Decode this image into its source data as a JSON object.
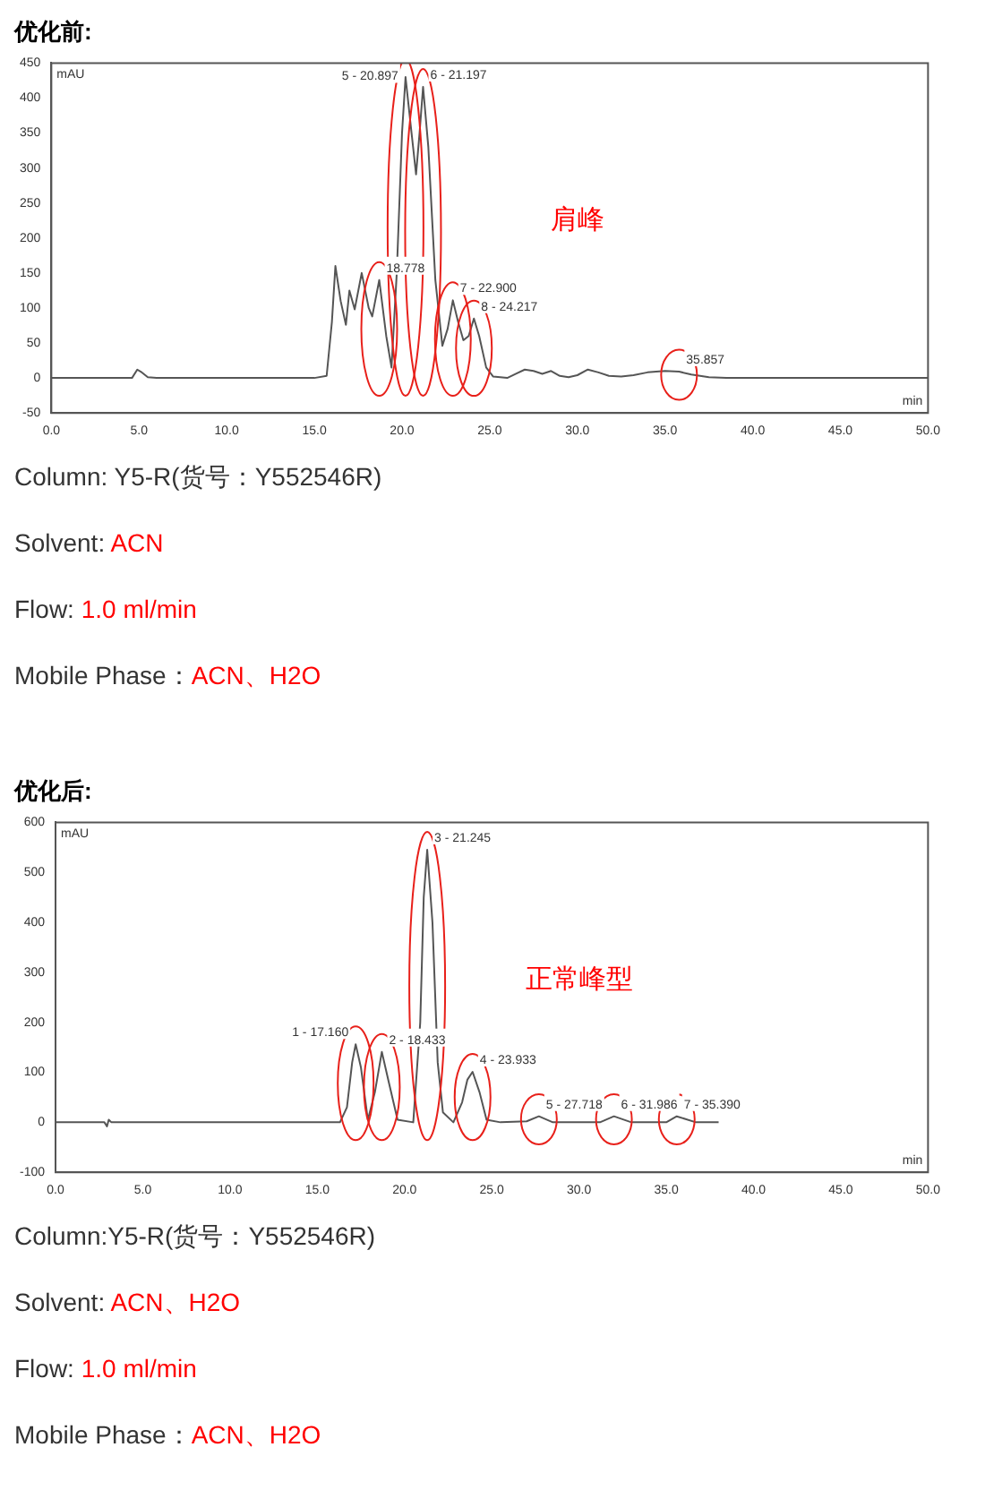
{
  "chart_data": [
    {
      "type": "line",
      "title": "优化前:",
      "xlabel": "min",
      "ylabel": "mAU",
      "xlim": [
        0,
        50
      ],
      "ylim": [
        -50,
        450
      ],
      "xticks": [
        {
          "value": 0,
          "label": "0.0"
        },
        {
          "value": 5,
          "label": "5.0"
        },
        {
          "value": 10,
          "label": "10.0"
        },
        {
          "value": 15,
          "label": "15.0"
        },
        {
          "value": 20,
          "label": "20.0"
        },
        {
          "value": 25,
          "label": "25.0"
        },
        {
          "value": 30,
          "label": "30.0"
        },
        {
          "value": 35,
          "label": "35.0"
        },
        {
          "value": 40,
          "label": "40.0"
        },
        {
          "value": 45,
          "label": "45.0"
        },
        {
          "value": 50,
          "label": "50.0"
        }
      ],
      "yticks": [
        -50,
        0,
        50,
        100,
        150,
        200,
        250,
        300,
        350,
        400,
        450
      ],
      "grid": false,
      "legend": false,
      "marker": "none",
      "line_style": "solid",
      "series": [
        {
          "color": "#555555",
          "x": [
            0,
            4.6,
            4.9,
            5.1,
            5.5,
            6,
            15,
            15.7,
            16.0,
            16.2,
            16.5,
            16.8,
            17.0,
            17.3,
            17.7,
            18.1,
            18.3,
            18.7,
            19.1,
            19.4,
            19.7,
            20.0,
            20.2,
            20.5,
            20.8,
            21.0,
            21.2,
            21.5,
            21.9,
            22.3,
            22.6,
            22.9,
            23.2,
            23.5,
            23.8,
            24.1,
            24.4,
            24.8,
            25.2,
            26,
            26.5,
            27,
            27.5,
            28,
            28.5,
            29,
            29.5,
            30,
            30.6,
            31.2,
            31.8,
            32.5,
            33.2,
            34,
            35,
            35.8,
            36.5,
            37.5,
            38.5,
            50
          ],
          "values": [
            0,
            0,
            12,
            9,
            1,
            0,
            0,
            3,
            80,
            160,
            110,
            76,
            125,
            98,
            150,
            100,
            88,
            140,
            60,
            15,
            150,
            350,
            430,
            360,
            291,
            350,
            416,
            330,
            140,
            46,
            70,
            111,
            80,
            54,
            60,
            85,
            60,
            15,
            2,
            0,
            6,
            12,
            10,
            6,
            10,
            3,
            1,
            4,
            12,
            8,
            3,
            2,
            4,
            8,
            10,
            9,
            5,
            1,
            0,
            0
          ]
        }
      ],
      "annotations": [
        {
          "text": "18.778",
          "x": 18.7,
          "y": 140
        },
        {
          "text": "5 - 20.897",
          "x": 20.2,
          "y": 430
        },
        {
          "text": "6 - 21.197",
          "x": 21.2,
          "y": 416
        },
        {
          "text": "7 - 22.900",
          "x": 22.9,
          "y": 111
        },
        {
          "text": "8 - 24.217",
          "x": 24.1,
          "y": 85
        },
        {
          "text": "35.857",
          "x": 35.8,
          "y": 9
        },
        "肩峰",
        "Column: Y5-R(货号：Y552546R)",
        "Solvent: ACN",
        "Flow: 1.0 ml/min",
        "Mobile Phase：ACN、H2O"
      ]
    },
    {
      "type": "line",
      "title": "优化后:",
      "xlabel": "min",
      "ylabel": "mAU",
      "xlim": [
        0,
        50
      ],
      "ylim": [
        -100,
        600
      ],
      "xticks": [
        {
          "value": 0,
          "label": "0.0"
        },
        {
          "value": 5,
          "label": "5.0"
        },
        {
          "value": 10,
          "label": "10.0"
        },
        {
          "value": 15,
          "label": "15.0"
        },
        {
          "value": 20,
          "label": "20.0"
        },
        {
          "value": 25,
          "label": "25.0"
        },
        {
          "value": 30,
          "label": "30.0"
        },
        {
          "value": 35,
          "label": "35.0"
        },
        {
          "value": 40,
          "label": "40.0"
        },
        {
          "value": 45,
          "label": "45.0"
        },
        {
          "value": 50,
          "label": "50.0"
        }
      ],
      "yticks": [
        -100,
        0,
        100,
        200,
        300,
        400,
        500,
        600
      ],
      "grid": false,
      "legend": false,
      "marker": "none",
      "line_style": "solid",
      "series": [
        {
          "color": "#555555",
          "x": [
            0,
            2.8,
            2.95,
            3.05,
            3.2,
            16.3,
            16.7,
            17.0,
            17.2,
            17.5,
            17.9,
            18.3,
            18.7,
            19.1,
            19.6,
            20.5,
            20.9,
            21.1,
            21.3,
            21.6,
            21.9,
            22.2,
            22.8,
            23.3,
            23.6,
            23.9,
            24.3,
            24.7,
            25.5,
            27.0,
            27.7,
            28.5,
            31.2,
            32.0,
            33.0,
            35.0,
            35.6,
            36.7,
            38
          ],
          "values": [
            0,
            0,
            -8,
            5,
            0,
            0,
            30,
            120,
            156,
            110,
            5,
            60,
            141,
            80,
            5,
            0,
            200,
            450,
            545,
            400,
            120,
            20,
            0,
            40,
            85,
            101,
            60,
            5,
            0,
            2,
            12,
            0,
            0,
            12,
            0,
            0,
            12,
            0,
            0
          ]
        }
      ],
      "annotations": [
        {
          "text": "1 - 17.160",
          "x": 17.2,
          "y": 156
        },
        {
          "text": "2 - 18.433",
          "x": 18.7,
          "y": 141
        },
        {
          "text": "3 - 21.245",
          "x": 21.3,
          "y": 545
        },
        {
          "text": "4 - 23.933",
          "x": 23.9,
          "y": 101
        },
        {
          "text": "5 - 27.718",
          "x": 27.7,
          "y": 12
        },
        {
          "text": "6 - 31.986",
          "x": 32.0,
          "y": 12
        },
        {
          "text": "7 - 35.390",
          "x": 35.6,
          "y": 12
        },
        "正常峰型",
        "Column:Y5-R(货号：Y552546R)",
        "Solvent: ACN、H2O",
        "Flow: 1.0 ml/min",
        "Mobile Phase：ACN、H2O"
      ]
    }
  ]
}
